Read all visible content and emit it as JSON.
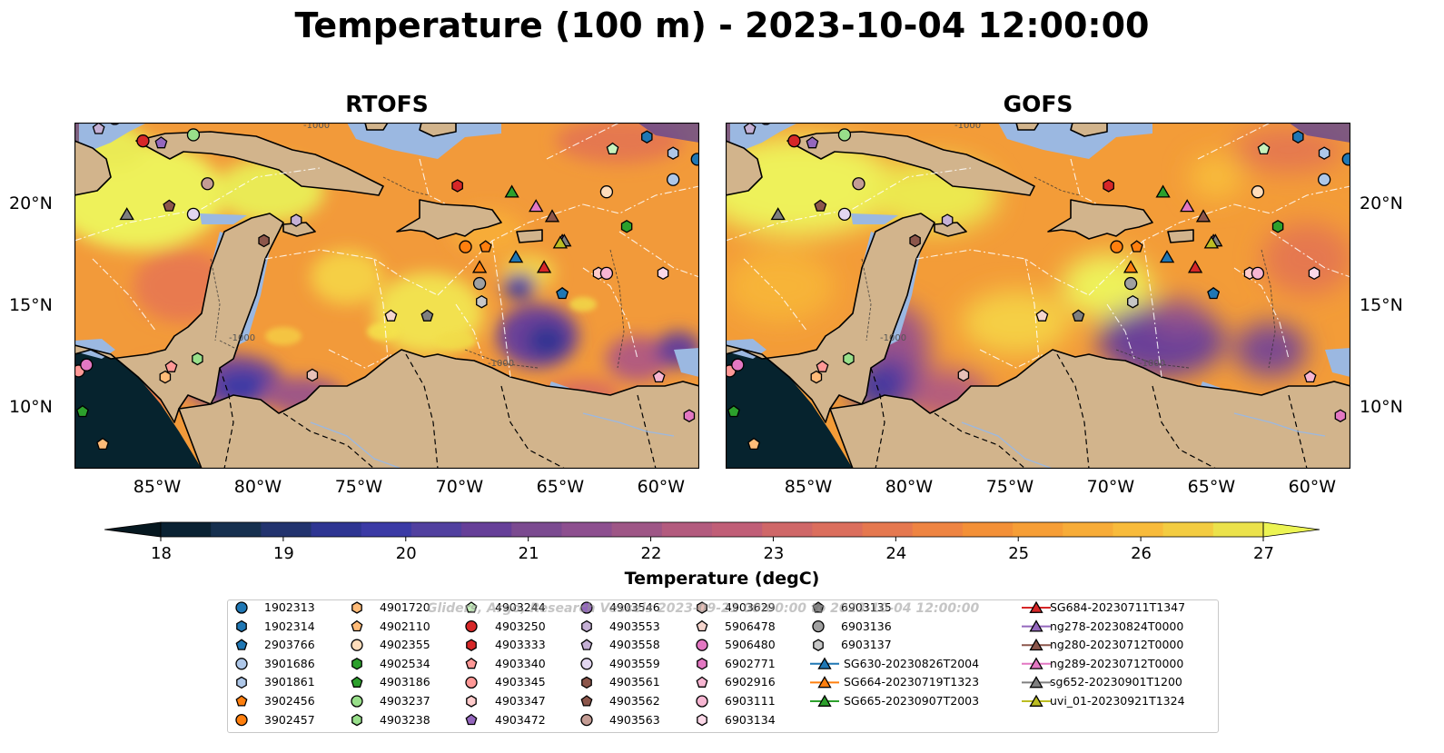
{
  "title": "Temperature (100 m) - 2023-10-04 12:00:00",
  "panels": [
    {
      "title": "RTOFS"
    },
    {
      "title": "GOFS"
    }
  ],
  "map_extent": {
    "lon": [
      -89,
      -58
    ],
    "lat": [
      7,
      24
    ]
  },
  "lon_ticks": [
    "85°W",
    "80°W",
    "75°W",
    "70°W",
    "65°W",
    "60°W"
  ],
  "lon_tick_values": [
    -85,
    -80,
    -75,
    -70,
    -65,
    -60
  ],
  "lat_ticks": [
    "20°N",
    "15°N",
    "10°N"
  ],
  "lat_tick_values": [
    20,
    15,
    10
  ],
  "bathymetry_labels": [
    "-1000",
    "-1000",
    "-1000"
  ],
  "colorbar": {
    "label": "Temperature (degC)",
    "min": 18,
    "max": 27,
    "extend": "both",
    "ticks": [
      "18",
      "19",
      "20",
      "21",
      "22",
      "23",
      "24",
      "25",
      "26",
      "27"
    ],
    "colors": [
      "#0a2233",
      "#16304f",
      "#22336e",
      "#2e3592",
      "#3b3aa5",
      "#51409f",
      "#663f98",
      "#7b4a90",
      "#8d4f8f",
      "#9e5686",
      "#b35b7e",
      "#c05e77",
      "#cf6768",
      "#db6e5d",
      "#e5784f",
      "#ee8442",
      "#f39037",
      "#f69e36",
      "#f7ac38",
      "#f8bb3b",
      "#f3cc41",
      "#ebe24b"
    ],
    "under_color": "#061820",
    "over_color": "#ecf453"
  },
  "colors": {
    "land": "#d2b48c",
    "shelf": "#9bb8e1",
    "deep": "#06232e"
  },
  "watermark": "Gliders, Argo, Research Vessels 2023-09-21 00:00:00 to 2023-10-04 12:00:00",
  "legend": [
    {
      "label": "1902313",
      "marker": "circle",
      "color": "#1f77b4"
    },
    {
      "label": "1902314",
      "marker": "hexagon",
      "color": "#1f77b4"
    },
    {
      "label": "2903766",
      "marker": "pentagon",
      "color": "#1f77b4"
    },
    {
      "label": "3901686",
      "marker": "circle",
      "color": "#aec7e8"
    },
    {
      "label": "3901861",
      "marker": "hexagon",
      "color": "#aec7e8"
    },
    {
      "label": "3902456",
      "marker": "pentagon",
      "color": "#ff7f0e"
    },
    {
      "label": "3902457",
      "marker": "circle",
      "color": "#ff7f0e"
    },
    {
      "label": "4901720",
      "marker": "hexagon",
      "color": "#ffbb78"
    },
    {
      "label": "4902110",
      "marker": "pentagon",
      "color": "#ffbb78"
    },
    {
      "label": "4902355",
      "marker": "circle",
      "color": "#ffddbb"
    },
    {
      "label": "4902534",
      "marker": "hexagon",
      "color": "#2ca02c"
    },
    {
      "label": "4903186",
      "marker": "pentagon",
      "color": "#2ca02c"
    },
    {
      "label": "4903237",
      "marker": "circle",
      "color": "#98df8a"
    },
    {
      "label": "4903238",
      "marker": "hexagon",
      "color": "#98df8a"
    },
    {
      "label": "4903244",
      "marker": "pentagon",
      "color": "#c7f2bd"
    },
    {
      "label": "4903250",
      "marker": "circle",
      "color": "#d62728"
    },
    {
      "label": "4903333",
      "marker": "hexagon",
      "color": "#d62728"
    },
    {
      "label": "4903340",
      "marker": "pentagon",
      "color": "#ff9896"
    },
    {
      "label": "4903345",
      "marker": "circle",
      "color": "#ff9896"
    },
    {
      "label": "4903347",
      "marker": "hexagon",
      "color": "#ffcbcb"
    },
    {
      "label": "4903472",
      "marker": "pentagon",
      "color": "#9467bd"
    },
    {
      "label": "4903546",
      "marker": "circle",
      "color": "#9467bd"
    },
    {
      "label": "4903553",
      "marker": "hexagon",
      "color": "#c5b0d5"
    },
    {
      "label": "4903558",
      "marker": "pentagon",
      "color": "#c5b0d5"
    },
    {
      "label": "4903559",
      "marker": "circle",
      "color": "#e2d6f0"
    },
    {
      "label": "4903561",
      "marker": "hexagon",
      "color": "#8c564b"
    },
    {
      "label": "4903562",
      "marker": "pentagon",
      "color": "#8c564b"
    },
    {
      "label": "4903563",
      "marker": "circle",
      "color": "#c49c94"
    },
    {
      "label": "4903629",
      "marker": "hexagon",
      "color": "#e7c0b8"
    },
    {
      "label": "5906478",
      "marker": "pentagon",
      "color": "#f5d5cd"
    },
    {
      "label": "5906480",
      "marker": "circle",
      "color": "#e377c2"
    },
    {
      "label": "6902771",
      "marker": "hexagon",
      "color": "#e377c2"
    },
    {
      "label": "6902916",
      "marker": "pentagon",
      "color": "#f7b6d2"
    },
    {
      "label": "6903111",
      "marker": "circle",
      "color": "#f7b6d2"
    },
    {
      "label": "6903134",
      "marker": "hexagon",
      "color": "#fbd8e8"
    },
    {
      "label": "6903135",
      "marker": "pentagon",
      "color": "#7f7f7f"
    },
    {
      "label": "6903136",
      "marker": "circle",
      "color": "#a0a0a0"
    },
    {
      "label": "6903137",
      "marker": "hexagon",
      "color": "#c7c7c7"
    },
    {
      "label": "SG630-20230826T2004",
      "marker": "triangle",
      "color": "#1f77b4",
      "line": true
    },
    {
      "label": "SG664-20230719T1323",
      "marker": "triangle",
      "color": "#ff7f0e",
      "line": true
    },
    {
      "label": "SG665-20230907T2003",
      "marker": "triangle",
      "color": "#2ca02c",
      "line": true
    },
    {
      "label": "SG684-20230711T1347",
      "marker": "triangle",
      "color": "#d62728",
      "line": true
    },
    {
      "label": "ng278-20230824T0000",
      "marker": "triangle",
      "color": "#9467bd",
      "line": true
    },
    {
      "label": "ng280-20230712T0000",
      "marker": "triangle",
      "color": "#8c564b",
      "line": true
    },
    {
      "label": "ng289-20230712T0000",
      "marker": "triangle",
      "color": "#e377c2",
      "line": true
    },
    {
      "label": "sg652-20230901T1200",
      "marker": "triangle",
      "color": "#7f7f7f",
      "line": true
    },
    {
      "label": "uvi_01-20230921T1324",
      "marker": "triangle",
      "color": "#bcbd22",
      "line": true
    }
  ],
  "platforms": [
    {
      "id": "1902313",
      "lon": -58.1,
      "lat": 22.2
    },
    {
      "id": "1902314",
      "lon": -60.6,
      "lat": 23.3
    },
    {
      "id": "2903766",
      "lon": -64.8,
      "lat": 15.6
    },
    {
      "id": "3901686",
      "lon": -59.3,
      "lat": 21.2
    },
    {
      "id": "3901861",
      "lon": -59.3,
      "lat": 22.5
    },
    {
      "id": "3902456",
      "lon": -68.6,
      "lat": 17.9
    },
    {
      "id": "3902457",
      "lon": -69.6,
      "lat": 17.9
    },
    {
      "id": "4901720",
      "lon": -84.5,
      "lat": 11.5
    },
    {
      "id": "4902110",
      "lon": -87.6,
      "lat": 8.2
    },
    {
      "id": "4902355",
      "lon": -62.6,
      "lat": 20.6
    },
    {
      "id": "4902534",
      "lon": -61.6,
      "lat": 18.9
    },
    {
      "id": "4903186",
      "lon": -88.6,
      "lat": 9.8
    },
    {
      "id": "4903237",
      "lon": -83.1,
      "lat": 23.4
    },
    {
      "id": "4903238",
      "lon": -82.9,
      "lat": 12.4
    },
    {
      "id": "4903244",
      "lon": -62.3,
      "lat": 22.7
    },
    {
      "id": "4903250",
      "lon": -85.6,
      "lat": 23.1
    },
    {
      "id": "4903333",
      "lon": -70.0,
      "lat": 20.9
    },
    {
      "id": "4903340",
      "lon": -84.2,
      "lat": 12.0
    },
    {
      "id": "4903345",
      "lon": -88.8,
      "lat": 11.8
    },
    {
      "id": "4903347",
      "lon": -63.0,
      "lat": 16.6
    },
    {
      "id": "4903472",
      "lon": -84.7,
      "lat": 23.0
    },
    {
      "id": "4903546",
      "lon": -87.0,
      "lat": 24.2
    },
    {
      "id": "4903553",
      "lon": -78.0,
      "lat": 19.2
    },
    {
      "id": "4903558",
      "lon": -87.8,
      "lat": 23.7
    },
    {
      "id": "4903559",
      "lon": -83.1,
      "lat": 19.5
    },
    {
      "id": "4903561",
      "lon": -79.6,
      "lat": 18.2
    },
    {
      "id": "4903562",
      "lon": -84.3,
      "lat": 19.9
    },
    {
      "id": "4903563",
      "lon": -82.4,
      "lat": 21.0
    },
    {
      "id": "4903629",
      "lon": -77.2,
      "lat": 11.6
    },
    {
      "id": "5906478",
      "lon": -73.3,
      "lat": 14.5
    },
    {
      "id": "5906480",
      "lon": -88.4,
      "lat": 12.1
    },
    {
      "id": "6902771",
      "lon": -58.5,
      "lat": 9.6
    },
    {
      "id": "6902916",
      "lon": -60.0,
      "lat": 11.5
    },
    {
      "id": "6903111",
      "lon": -62.6,
      "lat": 16.6
    },
    {
      "id": "6903134",
      "lon": -59.8,
      "lat": 16.6
    },
    {
      "id": "6903135",
      "lon": -71.5,
      "lat": 14.5
    },
    {
      "id": "6903136",
      "lon": -68.9,
      "lat": 16.1
    },
    {
      "id": "6903137",
      "lon": -68.8,
      "lat": 15.2
    },
    {
      "id": "SG630-20230826T2004",
      "lon": -67.1,
      "lat": 17.4
    },
    {
      "id": "SG664-20230719T1323",
      "lon": -68.9,
      "lat": 16.9
    },
    {
      "id": "SG665-20230907T2003",
      "lon": -67.3,
      "lat": 20.6
    },
    {
      "id": "SG684-20230711T1347",
      "lon": -65.7,
      "lat": 16.9
    },
    {
      "id": "ng278-20230824T0000",
      "lon": -64.8,
      "lat": 18.2
    },
    {
      "id": "ng280-20230712T0000",
      "lon": -65.3,
      "lat": 19.4
    },
    {
      "id": "ng289-20230712T0000",
      "lon": -66.1,
      "lat": 19.9
    },
    {
      "id": "sg652-20230901T1200",
      "lon": -64.7,
      "lat": 18.2
    },
    {
      "id": "uvi_01-20230921T1324",
      "lon": -64.9,
      "lat": 18.1
    },
    {
      "id": "glider-west",
      "lon": -86.4,
      "lat": 19.5
    }
  ]
}
